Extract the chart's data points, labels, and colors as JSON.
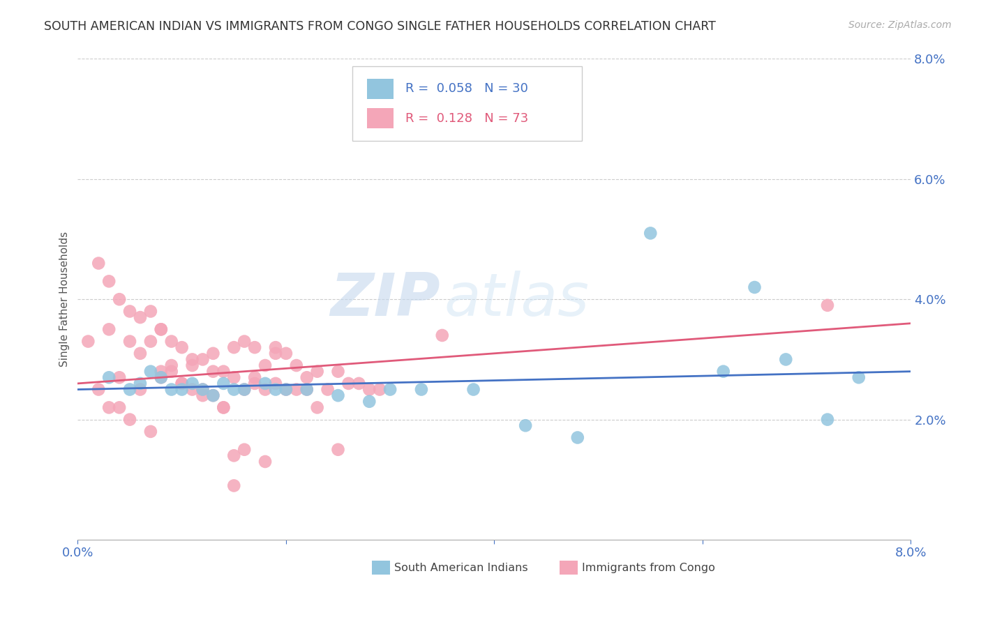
{
  "title": "SOUTH AMERICAN INDIAN VS IMMIGRANTS FROM CONGO SINGLE FATHER HOUSEHOLDS CORRELATION CHART",
  "source": "Source: ZipAtlas.com",
  "ylabel": "Single Father Households",
  "xmin": 0.0,
  "xmax": 0.08,
  "ymin": 0.0,
  "ymax": 0.08,
  "blue_R": 0.058,
  "blue_N": 30,
  "pink_R": 0.128,
  "pink_N": 73,
  "blue_color": "#92c5de",
  "pink_color": "#f4a6b8",
  "blue_line_color": "#4472C4",
  "pink_line_color": "#e05a7a",
  "axis_color": "#4472C4",
  "watermark_zip": "ZIP",
  "watermark_atlas": "atlas",
  "blue_scatter_x": [
    0.003,
    0.005,
    0.006,
    0.007,
    0.008,
    0.009,
    0.01,
    0.011,
    0.012,
    0.013,
    0.014,
    0.015,
    0.016,
    0.018,
    0.019,
    0.02,
    0.022,
    0.025,
    0.028,
    0.03,
    0.033,
    0.038,
    0.043,
    0.048,
    0.055,
    0.062,
    0.065,
    0.068,
    0.072,
    0.075
  ],
  "blue_scatter_y": [
    0.027,
    0.025,
    0.026,
    0.028,
    0.027,
    0.025,
    0.025,
    0.026,
    0.025,
    0.024,
    0.026,
    0.025,
    0.025,
    0.026,
    0.025,
    0.025,
    0.025,
    0.024,
    0.023,
    0.025,
    0.025,
    0.025,
    0.019,
    0.017,
    0.051,
    0.028,
    0.042,
    0.03,
    0.02,
    0.027
  ],
  "pink_scatter_x": [
    0.001,
    0.002,
    0.003,
    0.003,
    0.004,
    0.004,
    0.005,
    0.005,
    0.006,
    0.006,
    0.007,
    0.007,
    0.008,
    0.008,
    0.009,
    0.009,
    0.01,
    0.01,
    0.011,
    0.011,
    0.012,
    0.012,
    0.013,
    0.013,
    0.014,
    0.014,
    0.015,
    0.015,
    0.016,
    0.016,
    0.017,
    0.017,
    0.018,
    0.018,
    0.019,
    0.019,
    0.02,
    0.02,
    0.021,
    0.021,
    0.022,
    0.022,
    0.023,
    0.023,
    0.024,
    0.025,
    0.026,
    0.027,
    0.028,
    0.029,
    0.003,
    0.005,
    0.007,
    0.009,
    0.011,
    0.013,
    0.015,
    0.017,
    0.019,
    0.002,
    0.004,
    0.006,
    0.008,
    0.01,
    0.012,
    0.014,
    0.016,
    0.018,
    0.035,
    0.072,
    0.015,
    0.025,
    0.008
  ],
  "pink_scatter_y": [
    0.033,
    0.046,
    0.043,
    0.035,
    0.04,
    0.027,
    0.038,
    0.033,
    0.037,
    0.025,
    0.038,
    0.033,
    0.035,
    0.028,
    0.033,
    0.028,
    0.032,
    0.026,
    0.03,
    0.025,
    0.03,
    0.025,
    0.028,
    0.024,
    0.028,
    0.022,
    0.027,
    0.032,
    0.033,
    0.025,
    0.032,
    0.026,
    0.029,
    0.025,
    0.026,
    0.032,
    0.025,
    0.031,
    0.025,
    0.029,
    0.025,
    0.027,
    0.022,
    0.028,
    0.025,
    0.028,
    0.026,
    0.026,
    0.025,
    0.025,
    0.022,
    0.02,
    0.018,
    0.029,
    0.029,
    0.031,
    0.014,
    0.027,
    0.031,
    0.025,
    0.022,
    0.031,
    0.027,
    0.026,
    0.024,
    0.022,
    0.015,
    0.013,
    0.034,
    0.039,
    0.009,
    0.015,
    0.035
  ],
  "blue_trendline_x": [
    0.0,
    0.08
  ],
  "blue_trendline_y_start": 0.025,
  "blue_trendline_y_end": 0.028,
  "pink_trendline_y_start": 0.026,
  "pink_trendline_y_end": 0.036
}
